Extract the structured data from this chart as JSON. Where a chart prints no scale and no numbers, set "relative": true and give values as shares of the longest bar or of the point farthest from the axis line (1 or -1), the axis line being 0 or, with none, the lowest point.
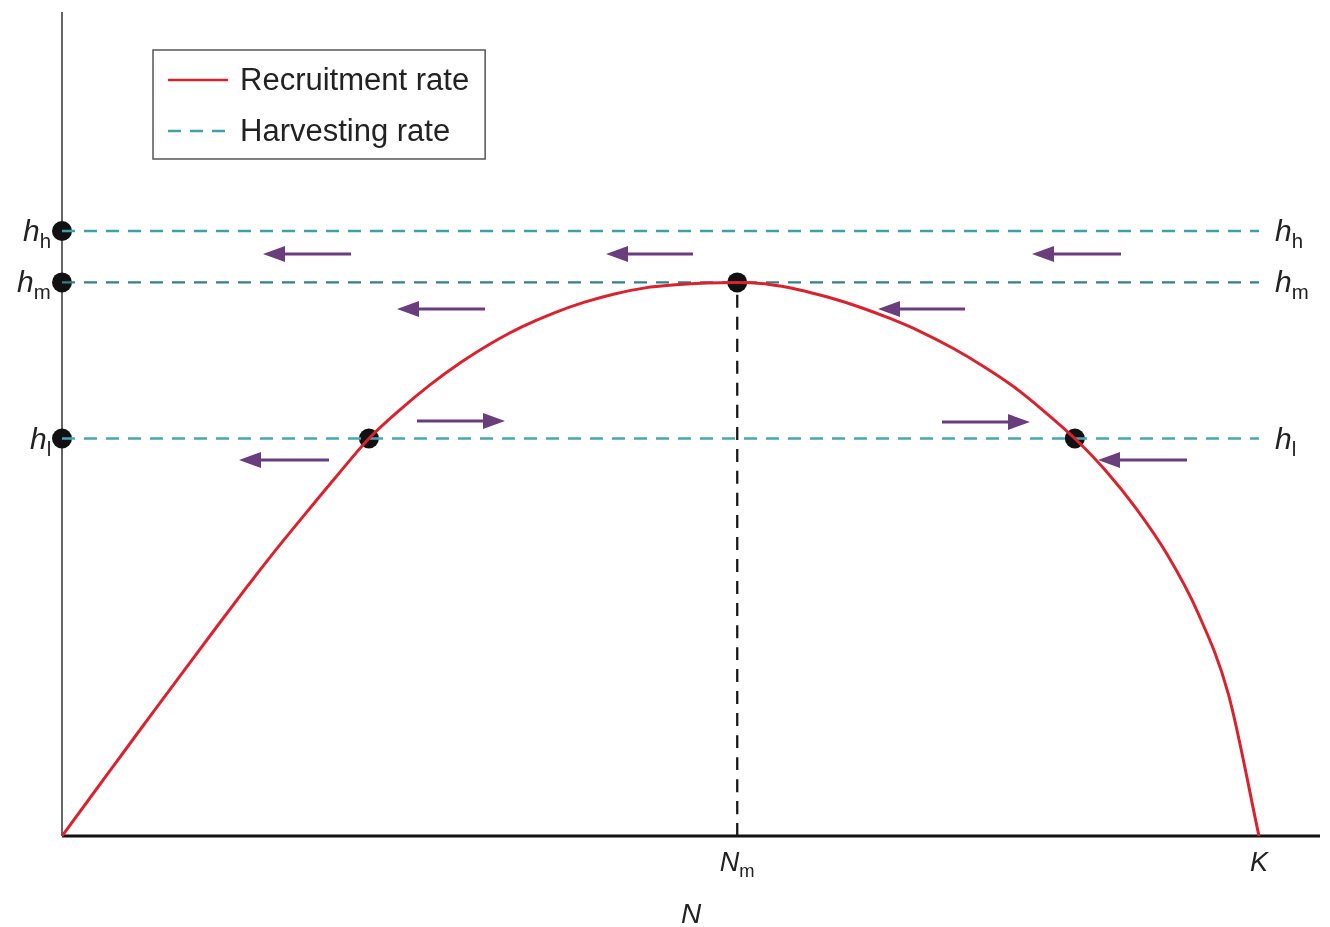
{
  "chart_data": {
    "type": "line",
    "relative": true,
    "xlabel": "N",
    "legend": "top left",
    "marker": "none",
    "categories": [
      null,
      null,
      null,
      null,
      null,
      null,
      null,
      null,
      null,
      null,
      null,
      null,
      null,
      null,
      null,
      null,
      null,
      null,
      null,
      null,
      null,
      null,
      "N$_{m}$",
      null,
      null,
      null,
      null,
      null,
      null,
      null,
      null,
      null,
      null,
      null,
      null,
      null,
      null,
      null,
      null,
      "K"
    ],
    "series": [
      {
        "name": "Recruitment rate",
        "color": "#d8232f",
        "values": [
          0,
          0.069,
          0.138,
          0.207,
          0.275,
          0.343,
          0.41,
          0.475,
          0.537,
          0.598,
          0.657,
          0.704,
          0.746,
          0.783,
          0.815,
          0.842,
          0.864,
          0.882,
          0.896,
          0.906,
          0.911,
          0.914,
          0.915,
          0.912,
          0.903,
          0.89,
          0.874,
          0.855,
          0.833,
          0.807,
          0.777,
          0.743,
          0.702,
          0.657,
          0.604,
          0.541,
          0.466,
          0.37,
          0.235,
          0
        ]
      },
      {
        "name": "Harvesting rate",
        "color": "#3f9fab",
        "line_style": "dashed",
        "values": [
          1,
          1,
          1,
          1,
          1,
          1,
          1,
          1,
          1,
          1,
          1,
          1,
          1,
          1,
          1,
          1,
          1,
          1,
          1,
          1,
          1,
          1,
          1,
          1,
          1,
          1,
          1,
          1,
          1,
          1,
          1,
          1,
          1,
          1,
          1,
          1,
          1,
          1,
          1,
          1
        ]
      },
      {
        "color": "#357f88",
        "line_style": "dashed",
        "values": [
          0.915,
          0.915,
          0.915,
          0.915,
          0.915,
          0.915,
          0.915,
          0.915,
          0.915,
          0.915,
          0.915,
          0.915,
          0.915,
          0.915,
          0.915,
          0.915,
          0.915,
          0.915,
          0.915,
          0.915,
          0.915,
          0.915,
          0.915,
          0.915,
          0.915,
          0.915,
          0.915,
          0.915,
          0.915,
          0.915,
          0.915,
          0.915,
          0.915,
          0.915,
          0.915,
          0.915,
          0.915,
          0.915,
          0.915,
          0.915
        ]
      },
      {
        "color": "#4aa7b2",
        "line_style": "dashed",
        "values": [
          0.657,
          0.657,
          0.657,
          0.657,
          0.657,
          0.657,
          0.657,
          0.657,
          0.657,
          0.657,
          0.657,
          0.657,
          0.657,
          0.657,
          0.657,
          0.657,
          0.657,
          0.657,
          0.657,
          0.657,
          0.657,
          0.657,
          0.657,
          0.657,
          0.657,
          0.657,
          0.657,
          0.657,
          0.657,
          0.657,
          0.657,
          0.657,
          0.657,
          0.657,
          0.657,
          0.657,
          0.657,
          0.657,
          0.657,
          0.657
        ]
      },
      {
        "color": "#1a1a1a",
        "line_style": "dashed",
        "x": [
          "N$_{m}$",
          "N$_{m}$"
        ],
        "values": [
          0,
          0.915
        ]
      },
      {
        "type": "scatter",
        "color": "#111111",
        "marker": "circle",
        "values": [
          1,
          null,
          null,
          null,
          null,
          null,
          null,
          null,
          null,
          null,
          0.657,
          null,
          null,
          null,
          null,
          null,
          null,
          null,
          null,
          null,
          null,
          null,
          0.915,
          null,
          null,
          null,
          null,
          null,
          null,
          null,
          null,
          null,
          null,
          0.657,
          null,
          null,
          null,
          null,
          null,
          null
        ]
      },
      {
        "type": "scatter",
        "color": "#111111",
        "marker": "circle",
        "values": [
          0.915,
          null,
          null,
          null,
          null,
          null,
          null,
          null,
          null,
          null,
          null,
          null,
          null,
          null,
          null,
          null,
          null,
          null,
          null,
          null,
          null,
          null,
          null,
          null,
          null,
          null,
          null,
          null,
          null,
          null,
          null,
          null,
          null,
          null,
          null,
          null,
          null,
          null,
          null,
          null
        ]
      },
      {
        "type": "scatter",
        "color": "#111111",
        "marker": "circle",
        "values": [
          0.657,
          null,
          null,
          null,
          null,
          null,
          null,
          null,
          null,
          null,
          null,
          null,
          null,
          null,
          null,
          null,
          null,
          null,
          null,
          null,
          null,
          null,
          null,
          null,
          null,
          null,
          null,
          null,
          null,
          null,
          null,
          null,
          null,
          null,
          null,
          null,
          null,
          null,
          null,
          null
        ]
      }
    ],
    "annotations": [
      "h$_{h}$",
      "h$_{m}$",
      "h$_{l}$",
      {
        "text": "h$_{h}$",
        "x": "K",
        "y": 1
      },
      {
        "text": "h$_{m}$",
        "x": "K",
        "y": 0.915
      },
      {
        "text": "h$_{l}$",
        "x": "K",
        "y": 0.657
      }
    ]
  }
}
